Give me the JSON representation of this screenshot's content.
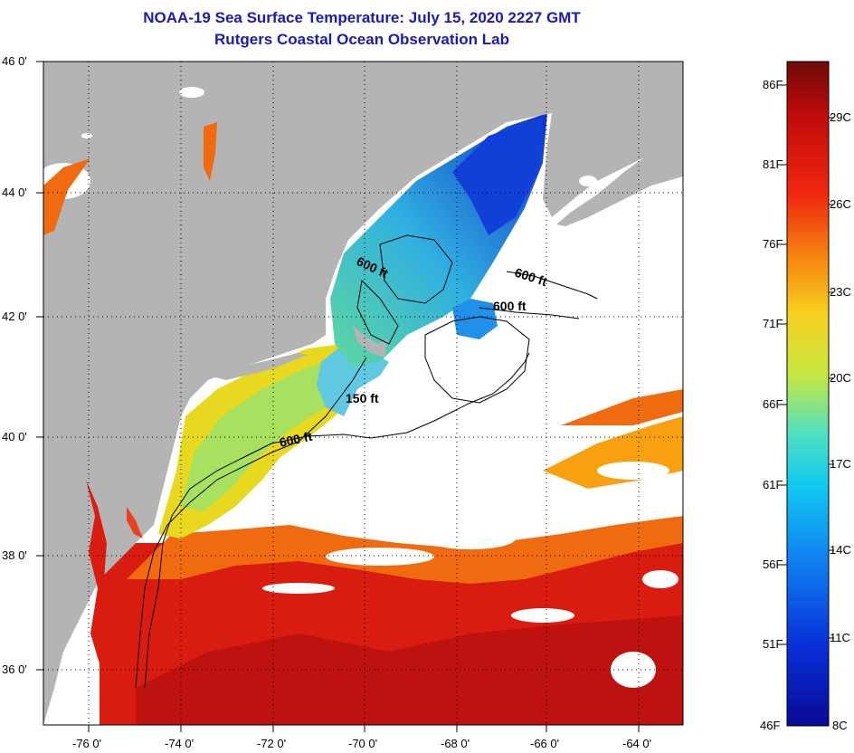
{
  "title_line1": "NOAA-19 Sea Surface Temperature:  July 15, 2020 2227 GMT",
  "title_line2": "Rutgers Coastal Ocean Observation Lab",
  "map": {
    "lat_range": [
      35,
      46
    ],
    "lon_range": [
      -77,
      -63
    ],
    "lat_ticks": [
      "46 0'",
      "44 0'",
      "42 0'",
      "40 0'",
      "38 0'",
      "36 0'"
    ],
    "lon_ticks": [
      "-76 0'",
      "-74 0'",
      "-72 0'",
      "-70 0'",
      "-68 0'",
      "-66 0'",
      "-64 0'"
    ],
    "contour_labels": [
      "600 ft",
      "600 ft",
      "600 ft",
      "150 ft",
      "600 ft"
    ],
    "colors": {
      "land": "#b4b4b4",
      "cloud": "#ffffff",
      "gulf_stream": "#d81c10",
      "shelf_warm": "#f06a10",
      "mid_atlantic": "#e8d820",
      "gulf_of_maine": "#38c8b0",
      "cold_water": "#1040d8"
    }
  },
  "colorbar": {
    "fahrenheit_labels": [
      "86F",
      "81F",
      "76F",
      "71F",
      "66F",
      "61F",
      "56F",
      "51F",
      "46F"
    ],
    "celsius_labels": [
      "29C",
      "26C",
      "23C",
      "20C",
      "17C",
      "14C",
      "11C",
      "8C"
    ],
    "gradient": [
      "#6e0a0a",
      "#c00a0a",
      "#f02810",
      "#f58a10",
      "#f8d020",
      "#c8e840",
      "#50e0c0",
      "#10c8f0",
      "#1080f0",
      "#0830d8",
      "#0a0a96"
    ]
  }
}
